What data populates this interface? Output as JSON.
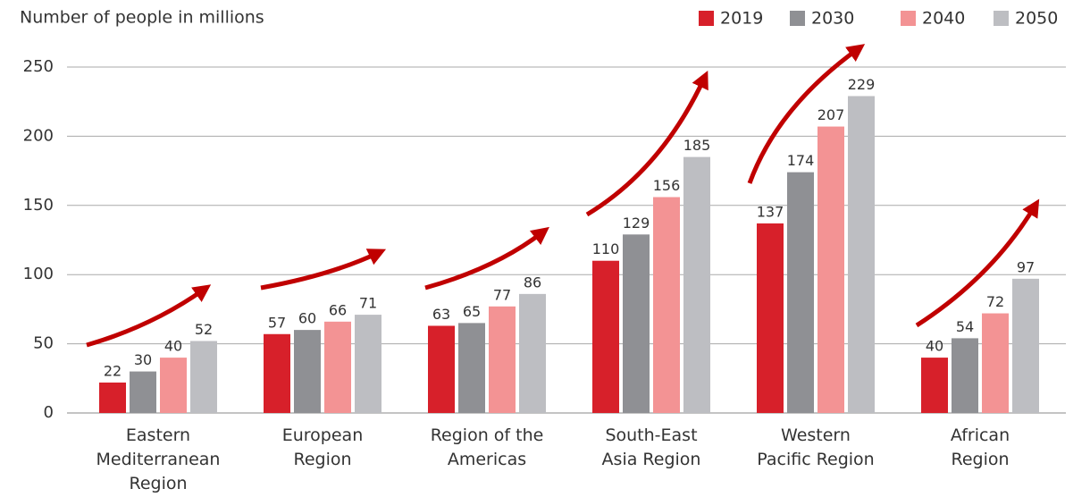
{
  "chart_data": {
    "type": "bar",
    "title": "Number of people in millions",
    "categories": [
      "Eastern\nMediterranean\nRegion",
      "European\nRegion",
      "Region of the\nAmericas",
      "South-East\nAsia Region",
      "Western\nPacific Region",
      "African\nRegion"
    ],
    "series": [
      {
        "name": "2019",
        "color": "#d7202a",
        "values": [
          22,
          57,
          63,
          110,
          137,
          40
        ]
      },
      {
        "name": "2030",
        "color": "#8f9094",
        "values": [
          30,
          60,
          65,
          129,
          174,
          54
        ]
      },
      {
        "name": "2040",
        "color": "#f39394",
        "values": [
          40,
          66,
          77,
          156,
          207,
          72
        ]
      },
      {
        "name": "2050",
        "color": "#bdbec2",
        "values": [
          52,
          71,
          86,
          185,
          229,
          97
        ]
      }
    ],
    "ylim": [
      0,
      250
    ],
    "yticks": [
      0,
      50,
      100,
      150,
      200,
      250
    ],
    "grid": true,
    "legend": "top-right"
  }
}
